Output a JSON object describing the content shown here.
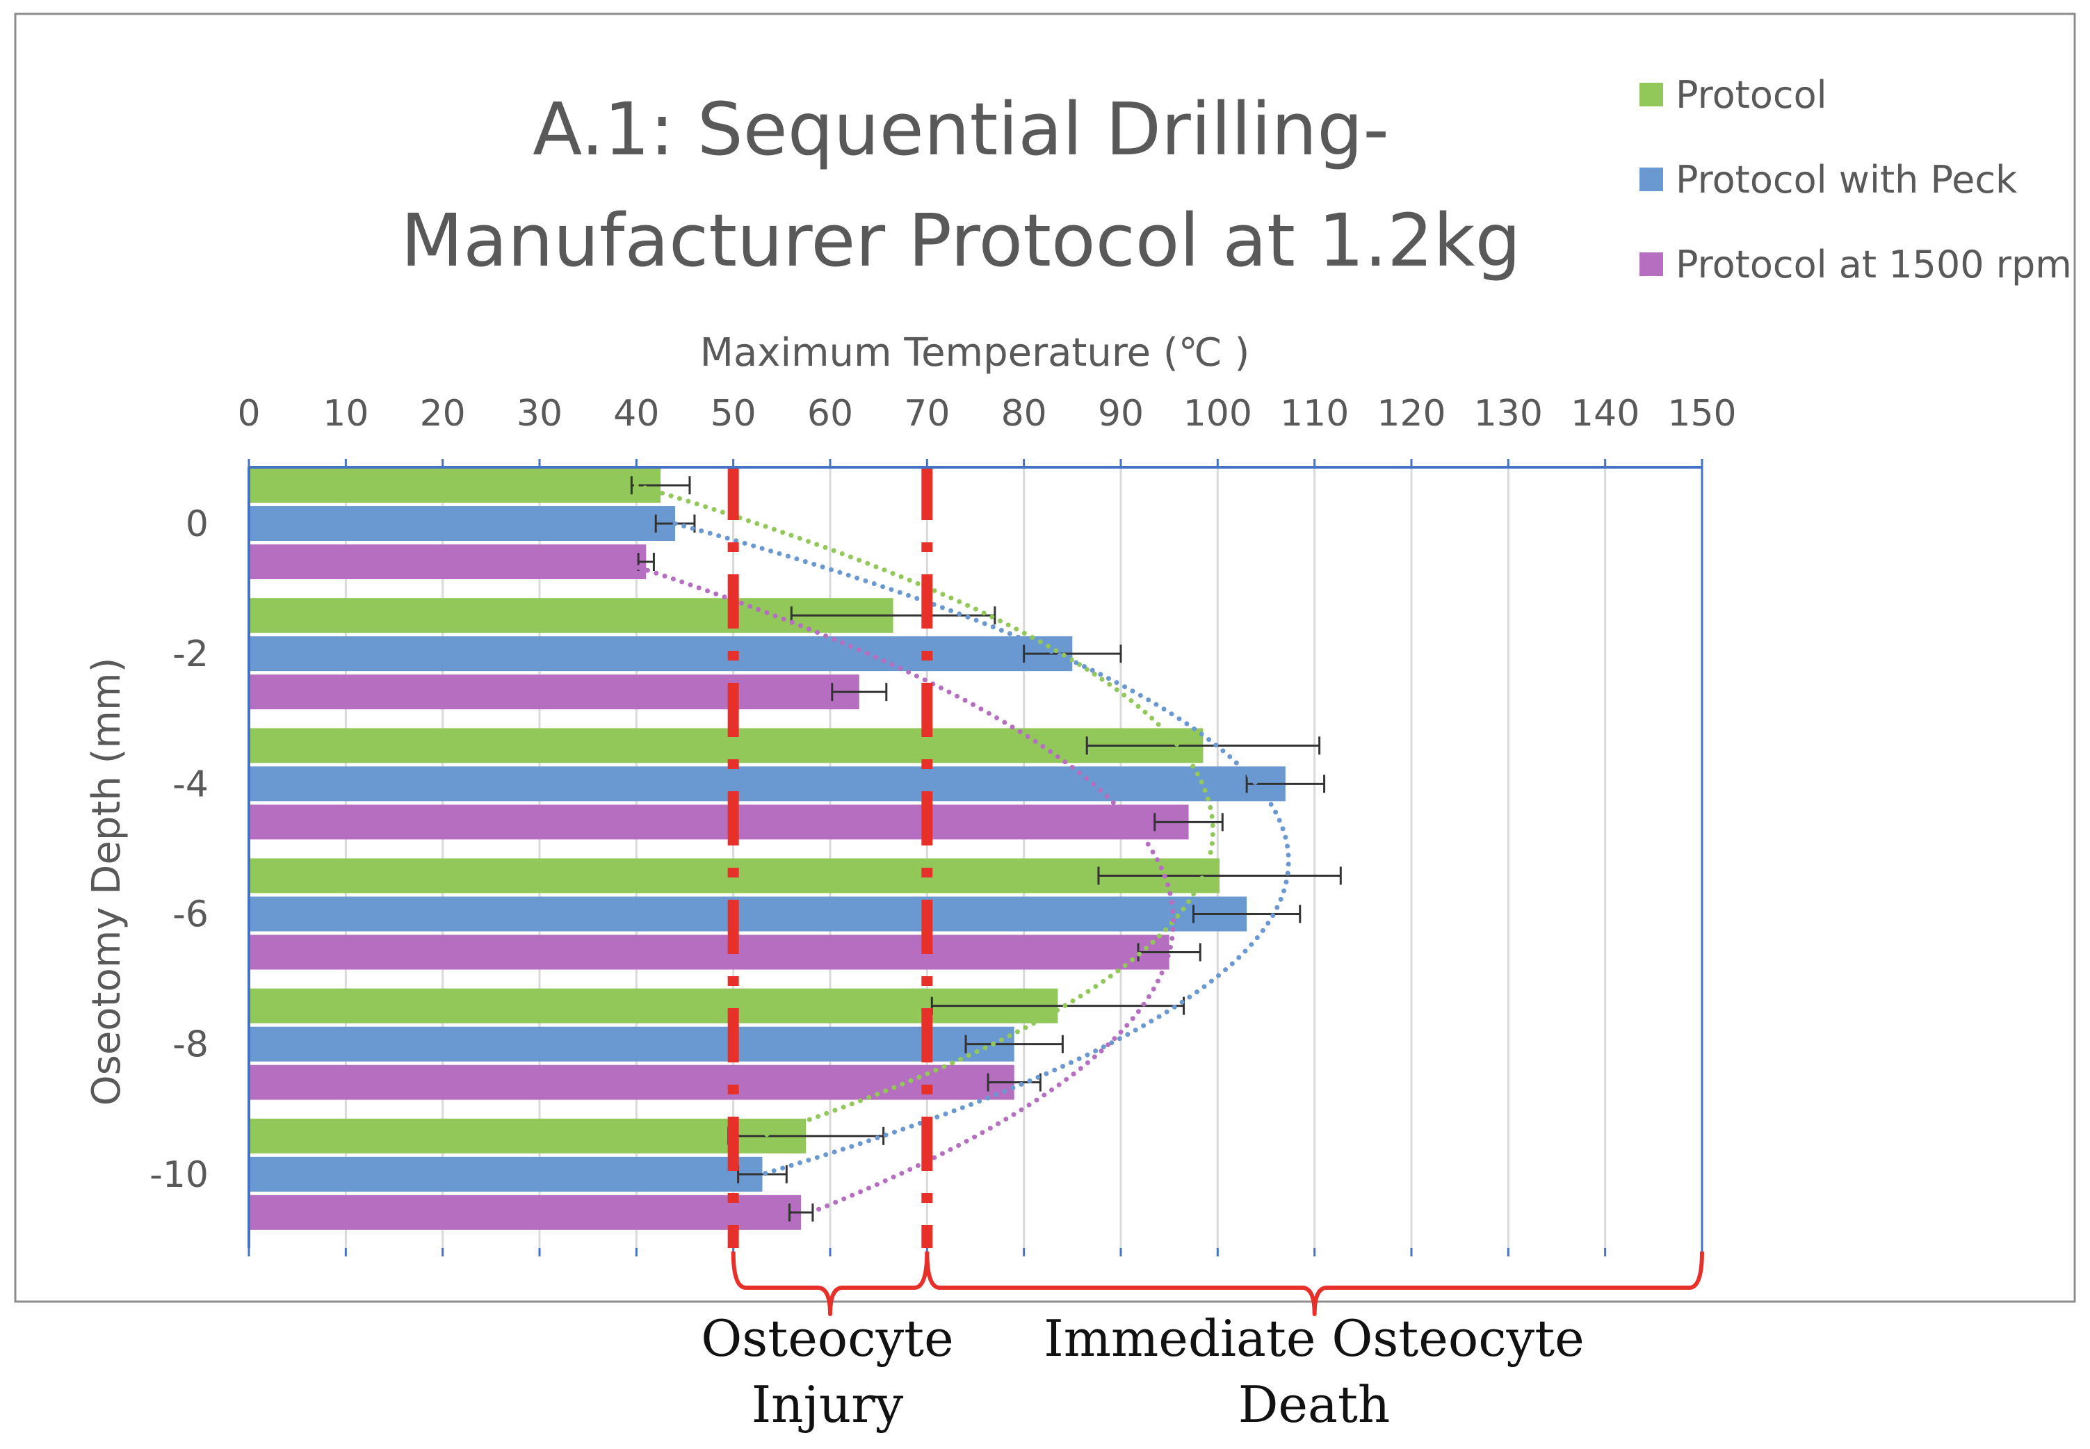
{
  "chart_data": {
    "type": "bar",
    "orientation": "horizontal",
    "title_lines": [
      "A.1: Sequential Drilling-",
      "Manufacturer Protocol at 1.2kg"
    ],
    "xlabel": "Maximum Temperature (℃ )",
    "ylabel": "Oseotomy Depth (mm)",
    "xlim": [
      0,
      150
    ],
    "x_ticks": [
      0,
      10,
      20,
      30,
      40,
      50,
      60,
      70,
      80,
      90,
      100,
      110,
      120,
      130,
      140,
      150
    ],
    "x_tick_labels": [
      "0",
      "10",
      "20",
      "30",
      "40",
      "50",
      "60",
      "70",
      "80",
      "90",
      "100",
      "110",
      "120",
      "130",
      "140",
      "150"
    ],
    "categories": [
      "0",
      "-2",
      "-4",
      "-6",
      "-8",
      "-10"
    ],
    "legend_position": "top-right",
    "grid": true,
    "series": [
      {
        "name": "Protocol",
        "color": "#92c85a",
        "values": [
          42.5,
          66.5,
          98.5,
          100.2,
          83.5,
          57.5
        ],
        "error": [
          3.0,
          10.5,
          12.0,
          12.5,
          13.0,
          8.0
        ]
      },
      {
        "name": "Protocol with Peck",
        "color": "#6a99d2",
        "values": [
          44.0,
          85.0,
          107.0,
          103.0,
          79.0,
          53.0
        ],
        "error": [
          2.0,
          5.0,
          4.0,
          5.5,
          5.0,
          2.5
        ]
      },
      {
        "name": "Protocol at 1500 rpm",
        "color": "#b56ec0",
        "values": [
          41.0,
          63.0,
          97.0,
          95.0,
          79.0,
          57.0
        ],
        "error": [
          0.8,
          2.8,
          3.5,
          3.2,
          2.7,
          1.2
        ]
      }
    ],
    "trendlines": [
      {
        "series": "Protocol",
        "type": "polynomial",
        "color": "#92c85a",
        "y_index": [
          0.0,
          3.0,
          5.0
        ],
        "values": [
          40.0,
          98.5,
          53.0
        ]
      },
      {
        "series": "Protocol with Peck",
        "type": "polynomial",
        "color": "#6a99d2",
        "y_index": [
          0.0,
          2.3,
          5.0
        ],
        "values": [
          44.0,
          106.5,
          53.0
        ]
      },
      {
        "series": "Protocol at 1500 rpm",
        "type": "polynomial",
        "color": "#b56ec0",
        "y_index": [
          0.0,
          3.0,
          5.0
        ],
        "values": [
          38.5,
          95.0,
          58.0
        ]
      }
    ],
    "reference_lines": [
      {
        "x": 50,
        "color": "#e8302a"
      },
      {
        "x": 70,
        "color": "#e8302a"
      }
    ],
    "annotations": [
      {
        "from": 50,
        "to": 70,
        "lines": [
          "Osteocyte",
          "Injury"
        ]
      },
      {
        "from": 70,
        "to": 150,
        "lines": [
          "Immediate Osteocyte",
          "Death"
        ]
      }
    ]
  }
}
